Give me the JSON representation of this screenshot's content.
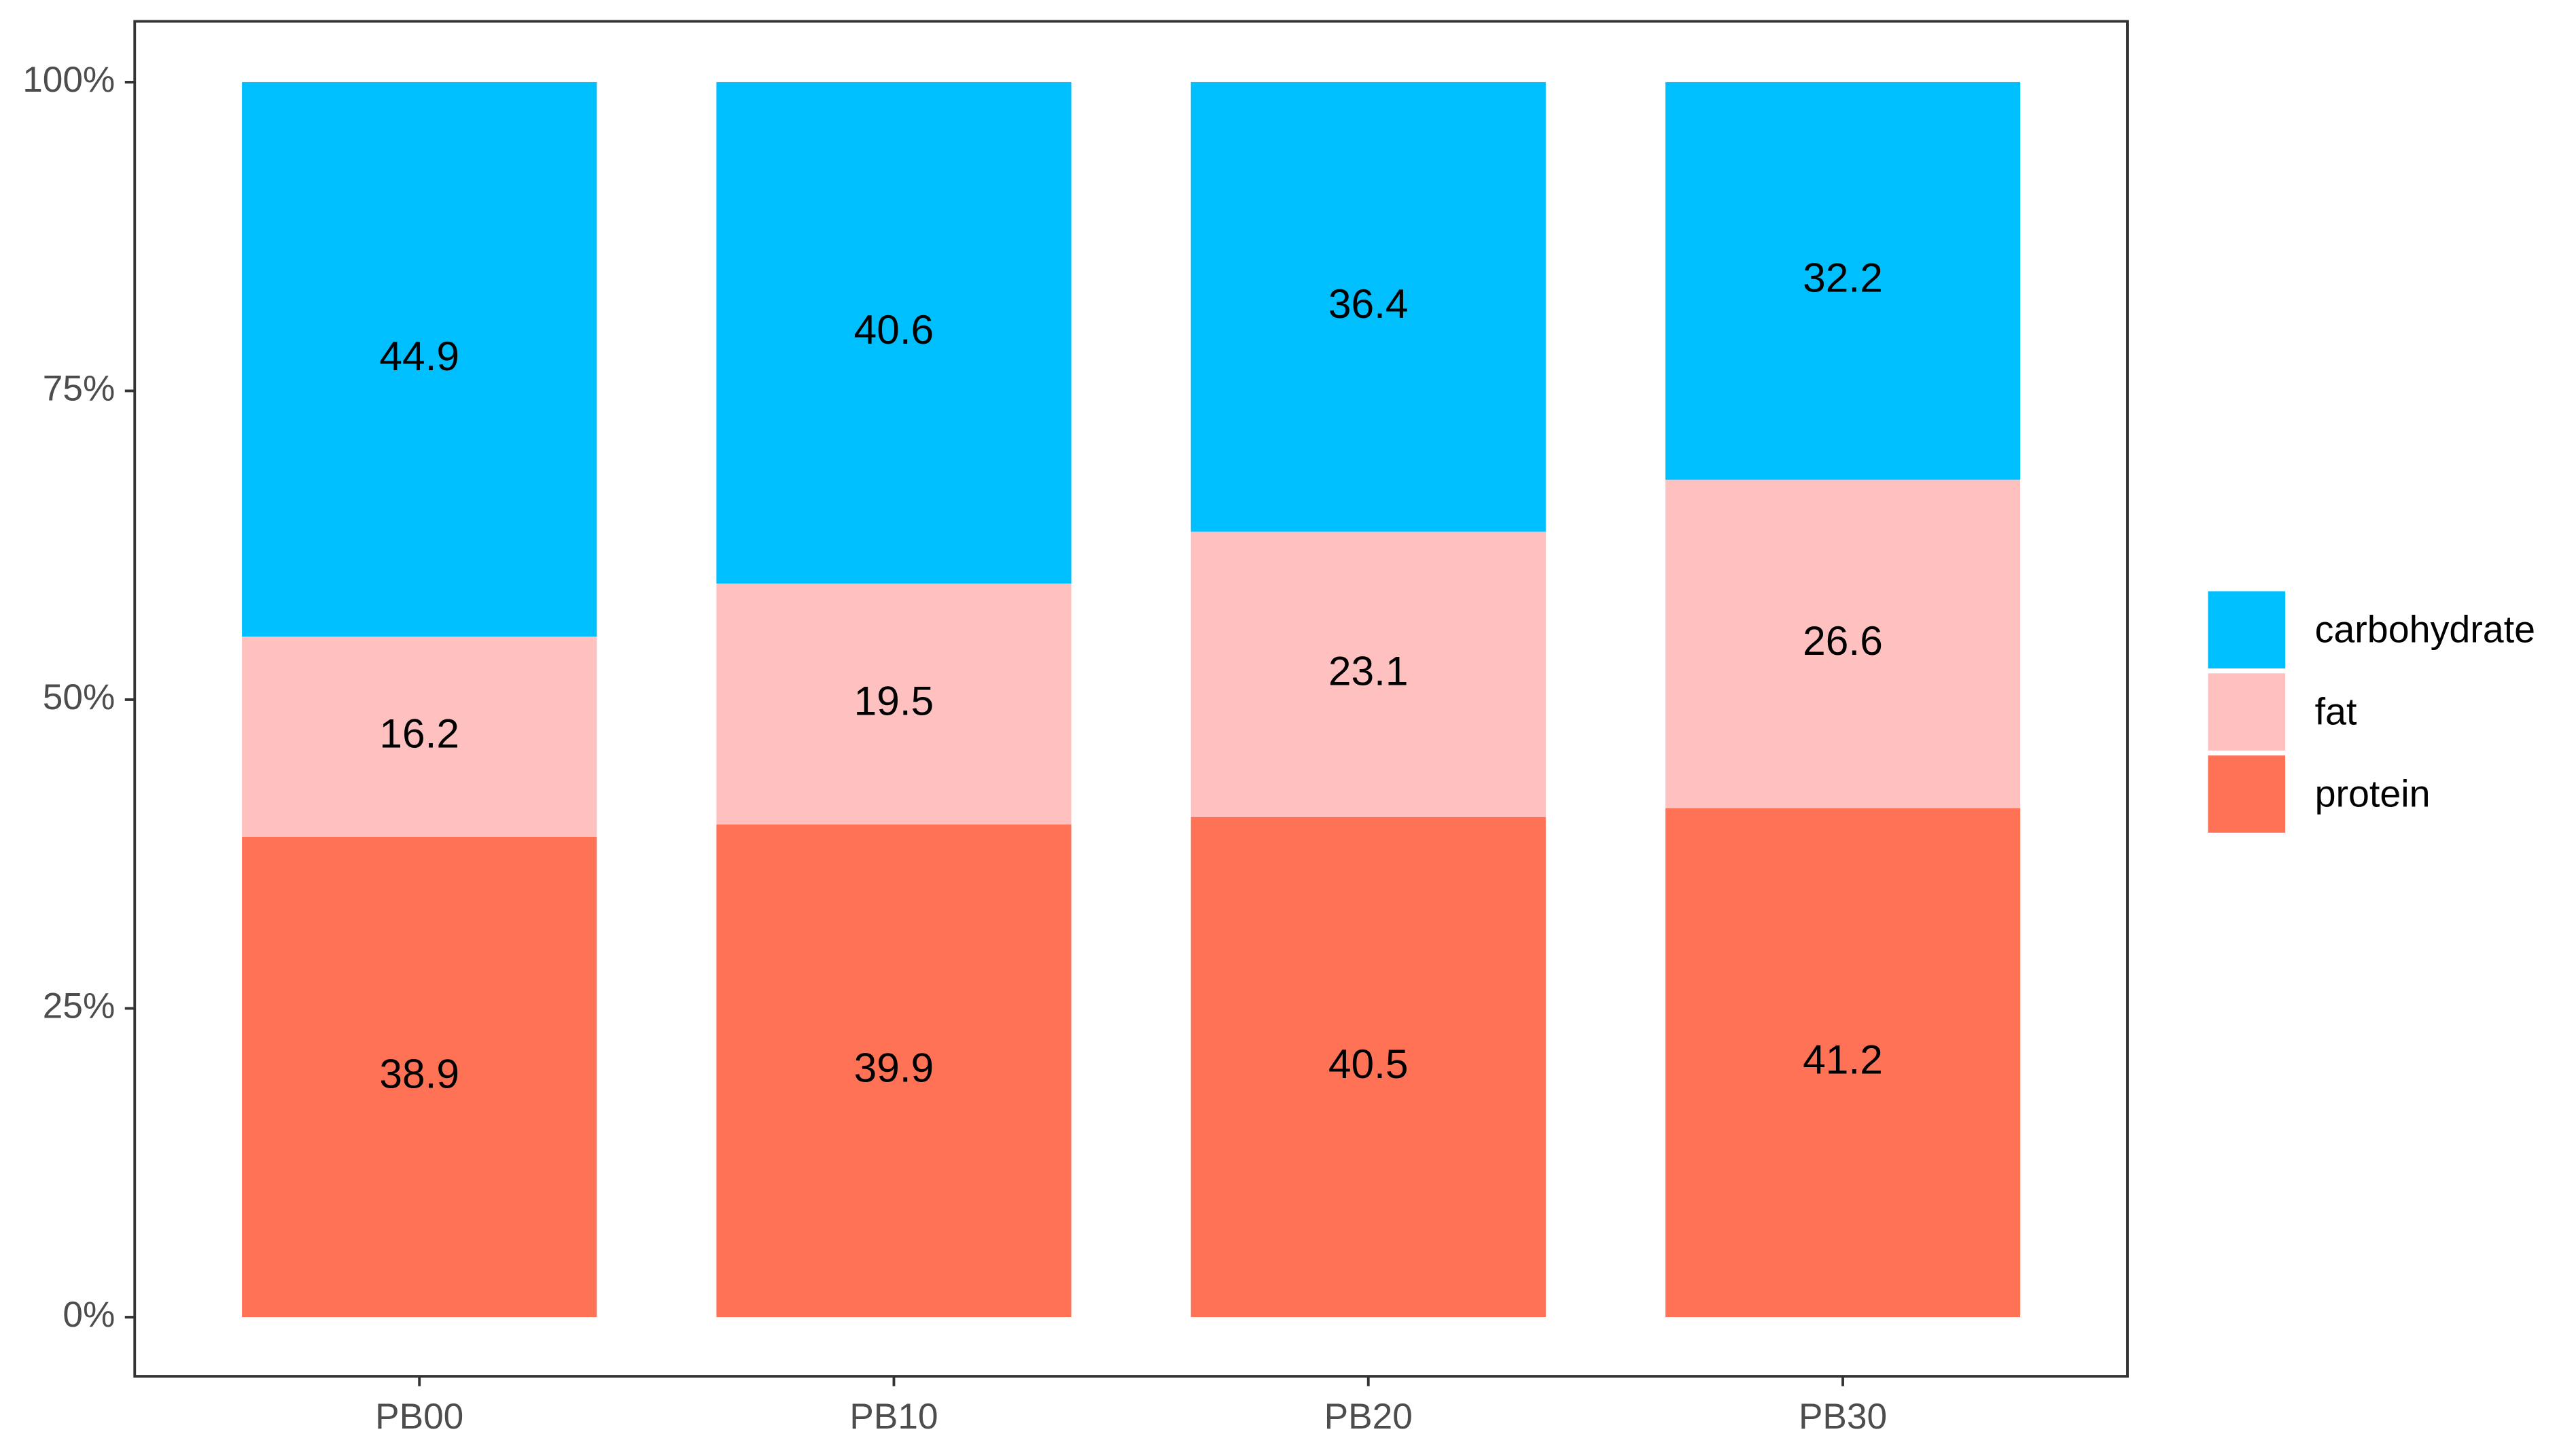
{
  "chart_data": {
    "type": "stacked_bar",
    "categories": [
      "PB00",
      "PB10",
      "PB20",
      "PB30"
    ],
    "series": [
      {
        "name": "protein",
        "color": "#ff7256",
        "values": [
          38.9,
          39.9,
          40.5,
          41.2
        ]
      },
      {
        "name": "fat",
        "color": "#ffc0c0",
        "values": [
          16.2,
          19.5,
          23.1,
          26.6
        ]
      },
      {
        "name": "carbohydrate",
        "color": "#00bfff",
        "values": [
          44.9,
          40.6,
          36.4,
          32.2
        ]
      }
    ],
    "ylim": [
      0,
      100
    ],
    "yticks": [
      {
        "value": 0,
        "label": "0%"
      },
      {
        "value": 25,
        "label": "25%"
      },
      {
        "value": 50,
        "label": "50%"
      },
      {
        "value": 75,
        "label": "75%"
      },
      {
        "value": 100,
        "label": "100%"
      }
    ],
    "grid": false
  }
}
